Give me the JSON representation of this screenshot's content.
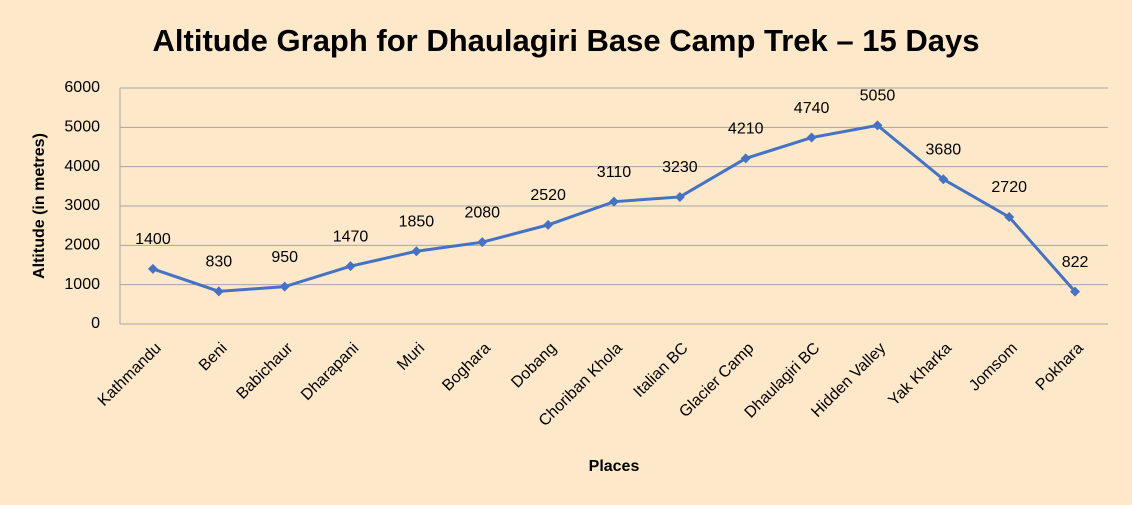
{
  "chart_data": {
    "type": "line",
    "title": "Altitude Graph for Dhaulagiri Base Camp Trek – 15 Days",
    "x_label": "Places",
    "y_label": "Altitude (in metres)",
    "categories": [
      "Kathmandu",
      "Beni",
      "Babichaur",
      "Dharapani",
      "Muri",
      "Boghara",
      "Dobang",
      "Choriban Khola",
      "Italian BC",
      "Glacier Camp",
      "Dhaulagiri BC",
      "Hidden Valley",
      "Yak Kharka",
      "Jomsom",
      "Pokhara"
    ],
    "values": [
      1400,
      830,
      950,
      1470,
      1850,
      2080,
      2520,
      3110,
      3230,
      4210,
      4740,
      5050,
      3680,
      2720,
      822
    ],
    "color": "#4472c4",
    "ylim": [
      0,
      6000
    ],
    "yticks": [
      0,
      1000,
      2000,
      3000,
      4000,
      5000,
      6000
    ],
    "grid": true
  }
}
